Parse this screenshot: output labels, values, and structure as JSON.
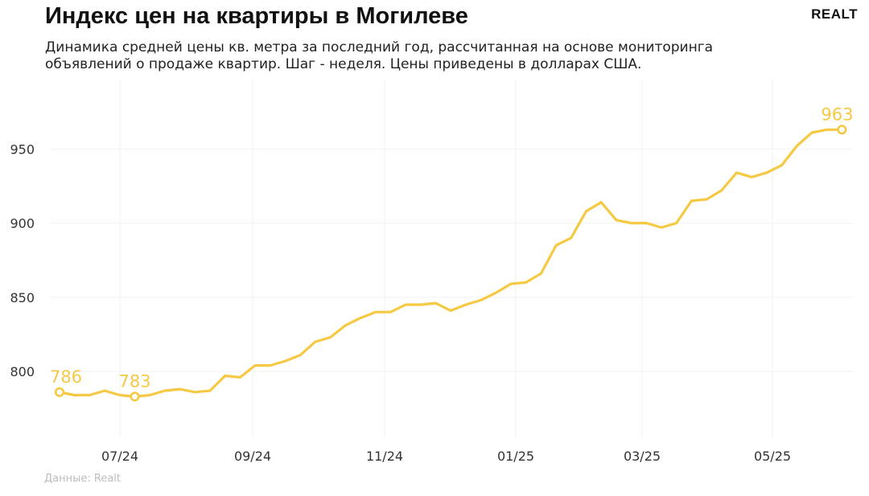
{
  "header": {
    "title": "Индекс цен на квартиры в Могилеве",
    "subtitle": "Динамика средней цены кв. метра за последний год, рассчитанная на основе мониторинга объявлений о продаже квартир. Шаг - неделя. Цены приведены в долларах США.",
    "logo": "REALT",
    "source": "Данные: Realt"
  },
  "colors": {
    "line": "#f6c944",
    "grid": "#f2f2f2",
    "text": "#333333",
    "source": "#bdbdbd"
  },
  "chart_data": {
    "type": "line",
    "title": "Индекс цен на квартиры в Могилеве",
    "subtitle": "Динамика средней цены кв. метра за последний год, рассчитанная на основе мониторинга объявлений о продаже квартир. Шаг - неделя. Цены приведены в долларах США.",
    "xlabel": "",
    "ylabel": "",
    "grid": true,
    "legend": "none",
    "ylim": [
      740,
      990
    ],
    "x_ticks": [
      "07/24",
      "09/24",
      "11/24",
      "01/25",
      "03/25",
      "05/25"
    ],
    "y_ticks": [
      800,
      850,
      900,
      950
    ],
    "series": [
      {
        "values": [
          786,
          784,
          784,
          787,
          784,
          783,
          784,
          787,
          788,
          786,
          787,
          797,
          796,
          804,
          804,
          807,
          811,
          820,
          823,
          831,
          836,
          840,
          840,
          845,
          845,
          846,
          841,
          845,
          848,
          853,
          859,
          860,
          866,
          885,
          890,
          908,
          914,
          902,
          900,
          900,
          897,
          900,
          915,
          916,
          922,
          934,
          931,
          934,
          939,
          952,
          961,
          963,
          963
        ]
      }
    ],
    "annotations": [
      {
        "index": 0,
        "label": "786"
      },
      {
        "index": 5,
        "label": "783"
      },
      {
        "index": 52,
        "label": "963"
      }
    ]
  }
}
